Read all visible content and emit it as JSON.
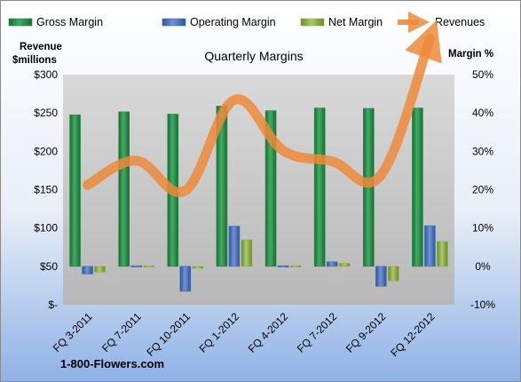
{
  "chart_data": {
    "type": "bar",
    "title": "Quarterly Margins",
    "left_axis_title": [
      "Revenue",
      "$millions"
    ],
    "right_axis_title": "Margin %",
    "categories": [
      "FQ 3-2011",
      "FQ 7-2011",
      "FQ 10-2011",
      "FQ 1-2012",
      "FQ 4-2012",
      "FQ 7-2012",
      "FQ 9-2012",
      "FQ 12-2012"
    ],
    "left_axis": {
      "ylim": [
        0,
        300
      ],
      "ticks": [
        0,
        50,
        100,
        150,
        200,
        250,
        300
      ],
      "tick_labels": [
        "$-",
        "$50",
        "$100",
        "$150",
        "$200",
        "$250",
        "$300"
      ]
    },
    "right_axis": {
      "ylim": [
        -10,
        50
      ],
      "ticks": [
        -10,
        0,
        10,
        20,
        30,
        40,
        50
      ],
      "tick_labels": [
        "-10%",
        "0%",
        "10%",
        "20%",
        "30%",
        "40%",
        "50%"
      ]
    },
    "series": [
      {
        "name": "Gross Margin",
        "type": "bar",
        "axis": "right",
        "color": "#2a8a4a",
        "values": [
          39.5,
          40.3,
          39.7,
          41.8,
          40.6,
          41.3,
          41.2,
          41.3
        ]
      },
      {
        "name": "Operating Margin",
        "type": "bar",
        "axis": "right",
        "color": "#4a72b8",
        "values": [
          -2.0,
          0.0,
          -6.5,
          10.5,
          0.0,
          1.2,
          -5.2,
          10.6
        ]
      },
      {
        "name": "Net Margin",
        "type": "bar",
        "axis": "right",
        "color": "#8fb24a",
        "values": [
          -1.5,
          0.0,
          -0.5,
          6.9,
          0.0,
          0.8,
          -3.8,
          6.5
        ]
      },
      {
        "name": "Revenues",
        "type": "line",
        "axis": "left",
        "color": "#ed8a3a",
        "values": [
          156,
          188,
          149,
          267,
          201,
          187,
          169,
          347
        ]
      }
    ],
    "grid": false,
    "legend_position": "top"
  },
  "footer": "1-800-Flowers.com"
}
